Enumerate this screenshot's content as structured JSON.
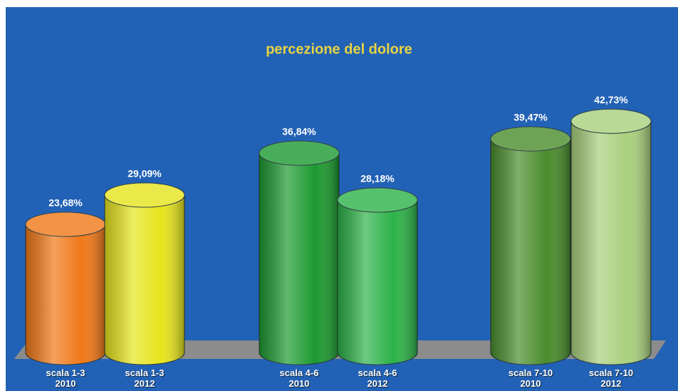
{
  "chart_data": {
    "type": "bar3d",
    "title": "percezione del dolore",
    "categories": [
      "scala 1-3\n2010",
      "scala 1-3\n2012",
      "scala 4-6\n2010",
      "scala 4-6\n2012",
      "scala 7-10\n2010",
      "scala 7-10\n2012"
    ],
    "values": [
      23.68,
      29.09,
      36.84,
      28.18,
      39.47,
      42.73
    ],
    "value_labels": [
      "23,68%",
      "29,09%",
      "36,84%",
      "28,18%",
      "39,47%",
      "42,73%"
    ],
    "colors": [
      "#f07818",
      "#e6e41c",
      "#1c9a30",
      "#2cb248",
      "#4a8c2c",
      "#a8d07c"
    ]
  }
}
